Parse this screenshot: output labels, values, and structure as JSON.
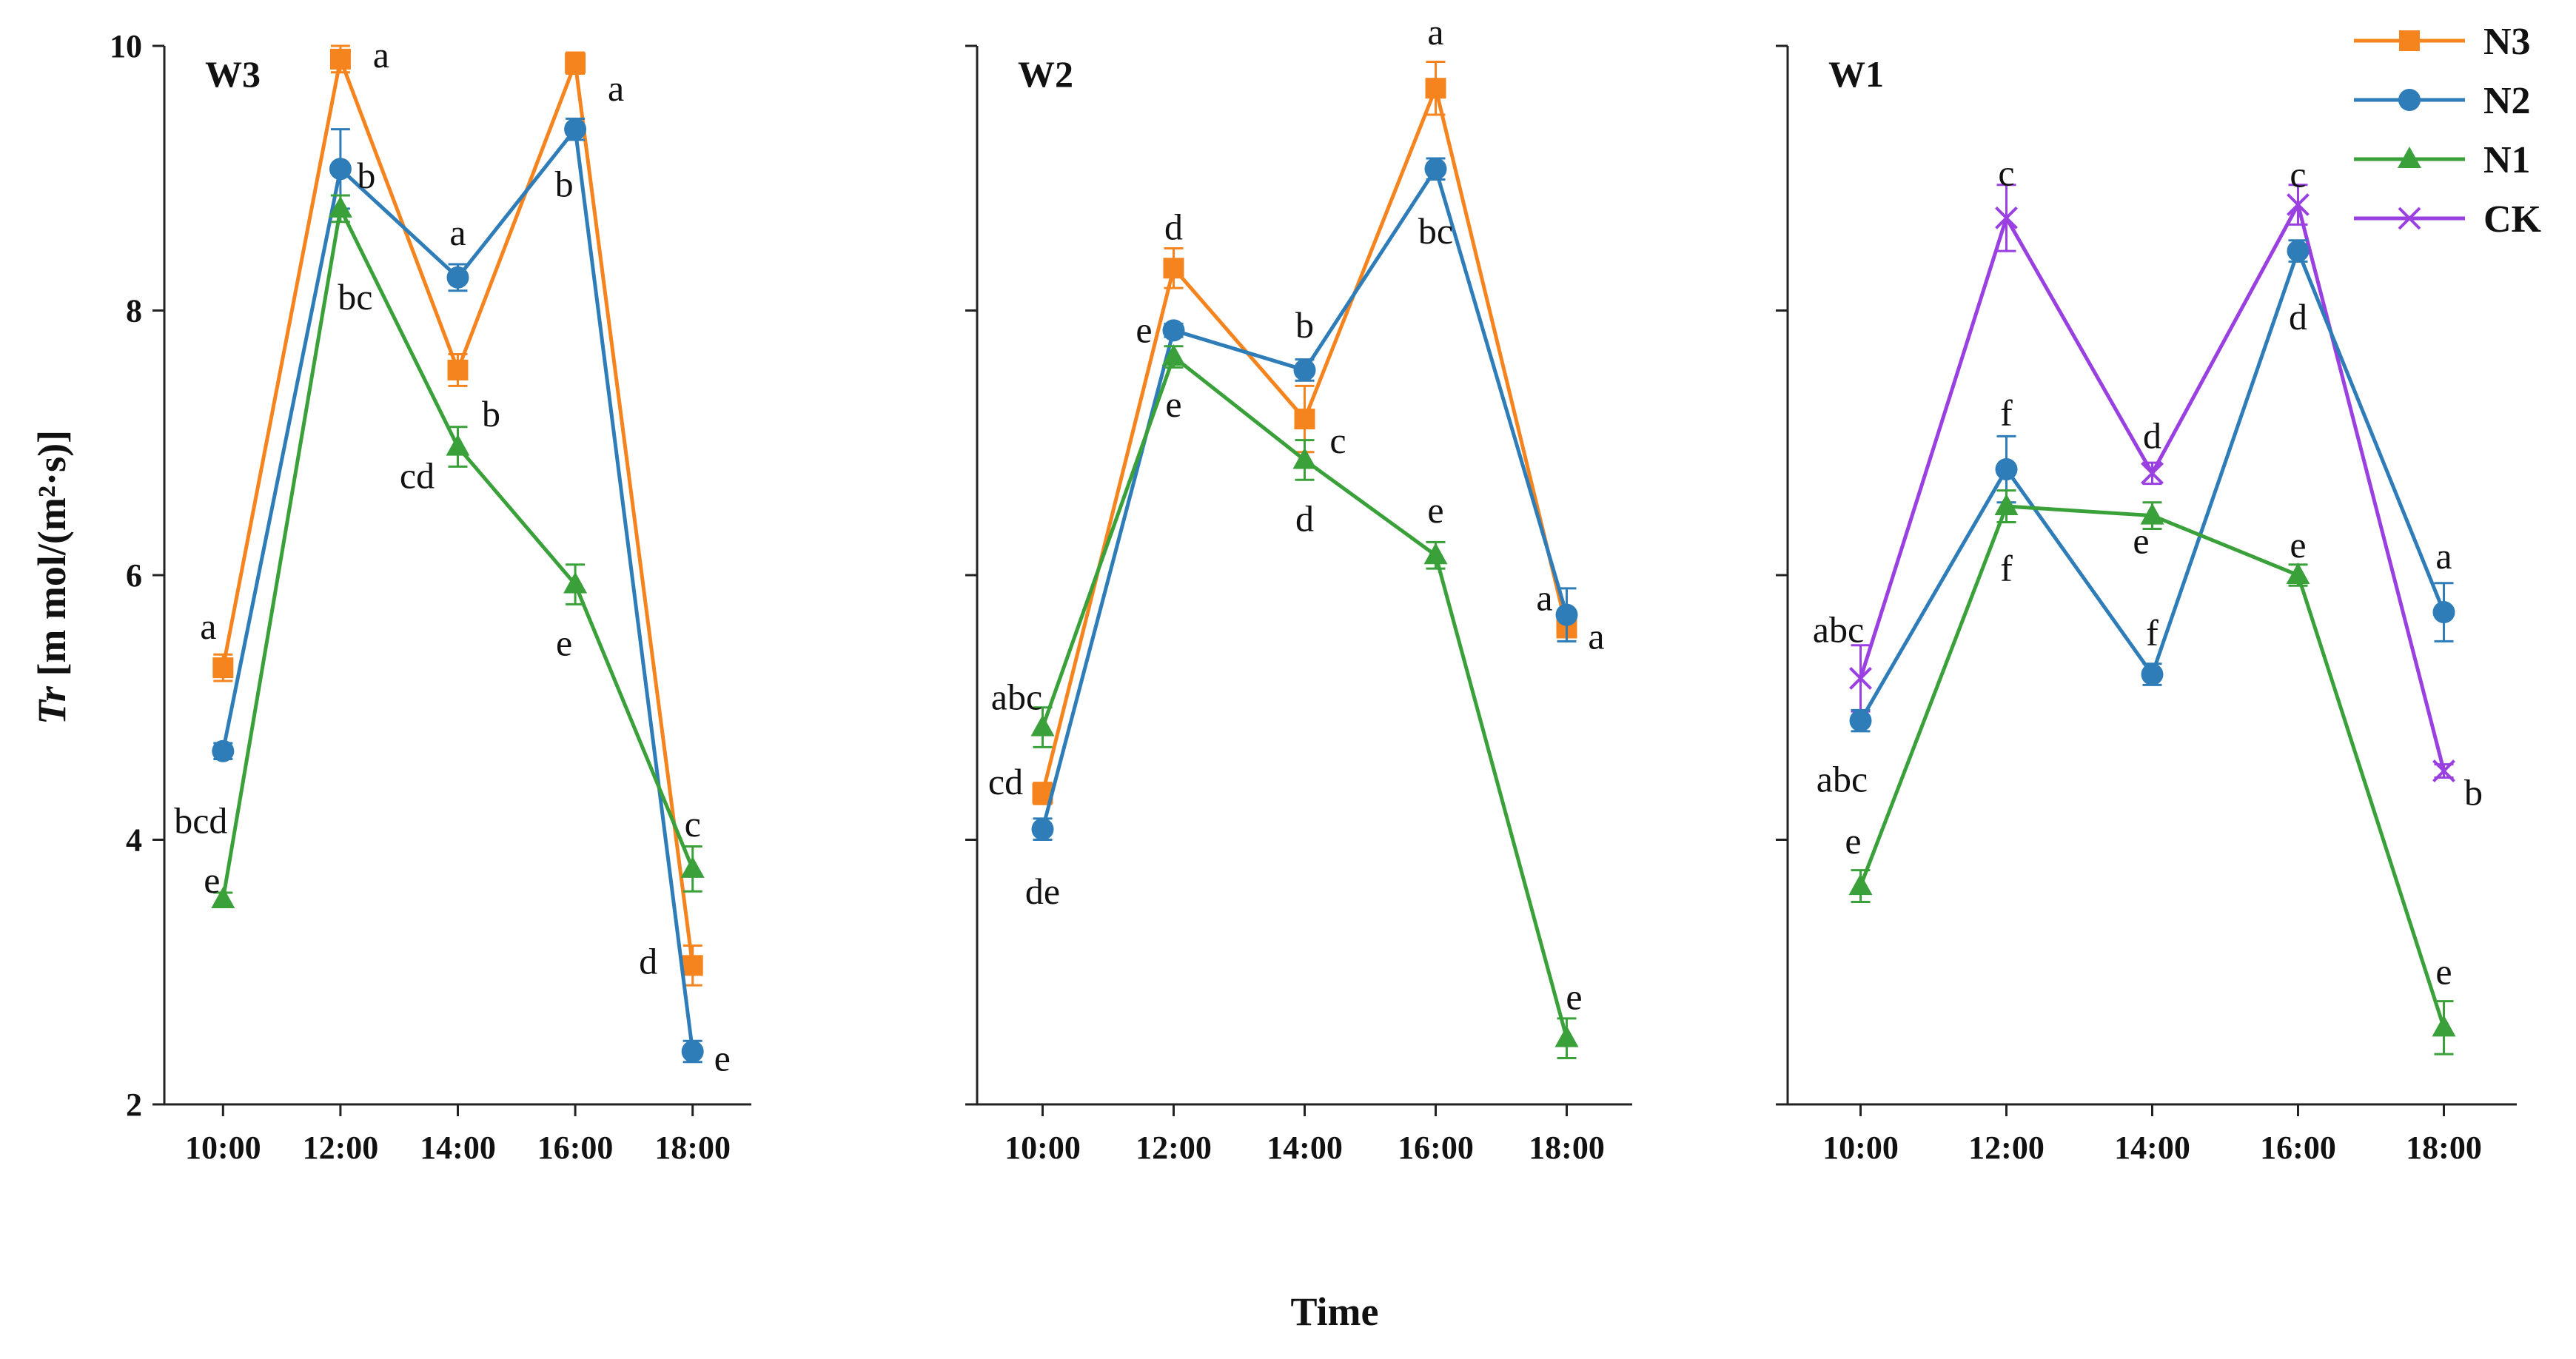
{
  "chart_data": {
    "type": "line",
    "xlabel": "Time",
    "ylabel_italic": "Tr",
    "ylabel_rest": " [m mol/(m²·s)]",
    "categories": [
      "10:00",
      "12:00",
      "14:00",
      "16:00",
      "18:00"
    ],
    "ylim": [
      2,
      10
    ],
    "yticks": [
      "2",
      "4",
      "6",
      "8",
      "10"
    ],
    "legend_position": "top-right",
    "series_styles": {
      "N3": {
        "color": "#F5841F",
        "marker": "square"
      },
      "N2": {
        "color": "#2E7DB8",
        "marker": "circle"
      },
      "N1": {
        "color": "#3AA13A",
        "marker": "triangle"
      },
      "CK": {
        "color": "#9A3FE0",
        "marker": "x"
      }
    },
    "legend": [
      "N3",
      "N2",
      "N1",
      "CK"
    ],
    "panels": [
      {
        "title": "W3",
        "series": [
          {
            "name": "N3",
            "values": [
              5.3,
              9.9,
              7.55,
              9.87,
              3.05
            ],
            "errors": [
              0.1,
              0.1,
              0.12,
              0.08,
              0.15
            ],
            "labels": [
              "a",
              "a",
              "b",
              "a",
              "d"
            ]
          },
          {
            "name": "N2",
            "values": [
              4.67,
              9.07,
              8.25,
              9.37,
              2.4
            ],
            "errors": [
              0.06,
              0.3,
              0.1,
              0.08,
              0.08
            ],
            "labels": [
              "bcd",
              "b",
              "a",
              "b",
              "e"
            ]
          },
          {
            "name": "N1",
            "values": [
              3.55,
              8.77,
              6.97,
              5.93,
              3.78
            ],
            "errors": [
              0.05,
              0.1,
              0.15,
              0.15,
              0.17
            ],
            "labels": [
              "e",
              "bc",
              "cd",
              "e",
              "c"
            ]
          }
        ]
      },
      {
        "title": "W2",
        "series": [
          {
            "name": "N3",
            "values": [
              4.35,
              8.32,
              7.18,
              9.68,
              5.6
            ],
            "errors": [
              0.08,
              0.15,
              0.25,
              0.2,
              0.1
            ],
            "labels": [
              "cd",
              "d",
              "c",
              "a",
              "a"
            ]
          },
          {
            "name": "N2",
            "values": [
              4.08,
              7.85,
              7.55,
              9.07,
              5.7
            ],
            "errors": [
              0.08,
              0.05,
              0.08,
              0.08,
              0.2
            ],
            "labels": [
              "de",
              "e",
              "b",
              "bc",
              "a"
            ]
          },
          {
            "name": "N1",
            "values": [
              4.85,
              7.65,
              6.87,
              6.15,
              2.5
            ],
            "errors": [
              0.15,
              0.08,
              0.15,
              0.1,
              0.15
            ],
            "labels": [
              "abc",
              "e",
              "d",
              "e",
              "e"
            ]
          }
        ]
      },
      {
        "title": "W1",
        "series": [
          {
            "name": "CK",
            "values": [
              5.22,
              8.7,
              6.77,
              8.8,
              4.52
            ],
            "errors": [
              0.25,
              0.25,
              0.08,
              0.15,
              0.05
            ],
            "labels": [
              "abc",
              "c",
              "d",
              "c",
              "b"
            ]
          },
          {
            "name": "N2",
            "values": [
              4.9,
              6.8,
              5.25,
              8.45,
              5.72
            ],
            "errors": [
              0.08,
              0.25,
              0.08,
              0.08,
              0.22
            ],
            "labels": [
              "abc",
              "f",
              "f",
              "d",
              "a"
            ]
          },
          {
            "name": "N1",
            "values": [
              3.65,
              6.52,
              6.45,
              6.0,
              2.58
            ],
            "errors": [
              0.12,
              0.12,
              0.1,
              0.08,
              0.2
            ],
            "labels": [
              "e",
              "f",
              "e",
              "e",
              "e"
            ]
          }
        ]
      }
    ]
  }
}
